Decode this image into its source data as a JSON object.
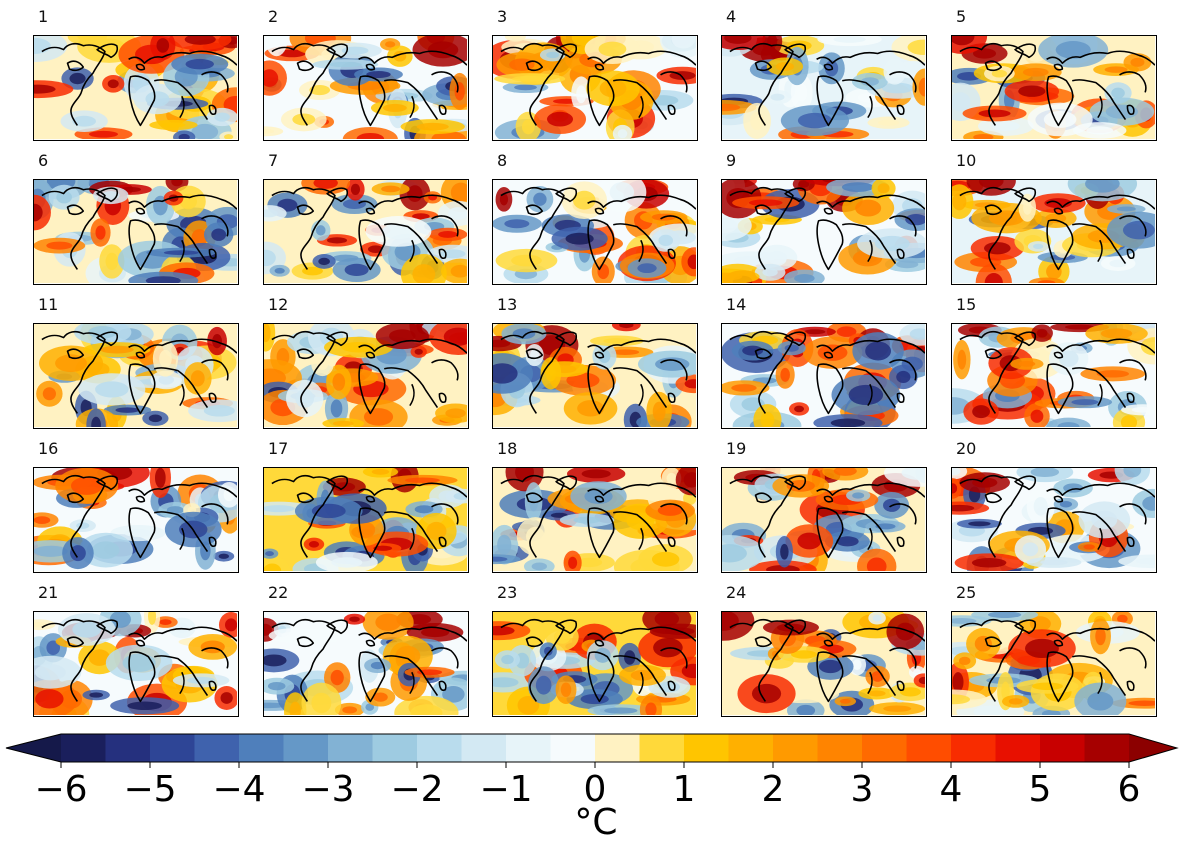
{
  "chart_data": {
    "type": "heatmap",
    "panels": [
      "1",
      "2",
      "3",
      "4",
      "5",
      "6",
      "7",
      "8",
      "9",
      "10",
      "11",
      "12",
      "13",
      "14",
      "15",
      "16",
      "17",
      "18",
      "19",
      "20",
      "21",
      "22",
      "23",
      "24",
      "25"
    ],
    "grid": {
      "rows": 5,
      "cols": 5
    },
    "colorbar": {
      "label": "°C",
      "ticks": [
        "−6",
        "−5",
        "−4",
        "−3",
        "−2",
        "−1",
        "0",
        "1",
        "2",
        "3",
        "4",
        "5",
        "6"
      ],
      "range": [
        -6,
        6
      ],
      "levels": [
        -6,
        -5.5,
        -5,
        -4.5,
        -4,
        -3.5,
        -3,
        -2.5,
        -2,
        -1.5,
        -1,
        -0.5,
        0,
        0.5,
        1,
        1.5,
        2,
        2.5,
        3,
        3.5,
        4,
        4.5,
        5,
        5.5,
        6
      ],
      "colors": [
        "#1a1f5c",
        "#25307e",
        "#2e4596",
        "#3f62ad",
        "#4f7fbb",
        "#6598c7",
        "#82b2d4",
        "#9ecbe1",
        "#b9dced",
        "#d3e9f3",
        "#e7f4f9",
        "#f6fbfd",
        "#fff2c2",
        "#ffd93a",
        "#ffc500",
        "#ffb000",
        "#ff9a00",
        "#ff8400",
        "#ff6a00",
        "#ff4d00",
        "#f82c00",
        "#e81000",
        "#c80000",
        "#a60000"
      ],
      "extend": "both"
    }
  }
}
